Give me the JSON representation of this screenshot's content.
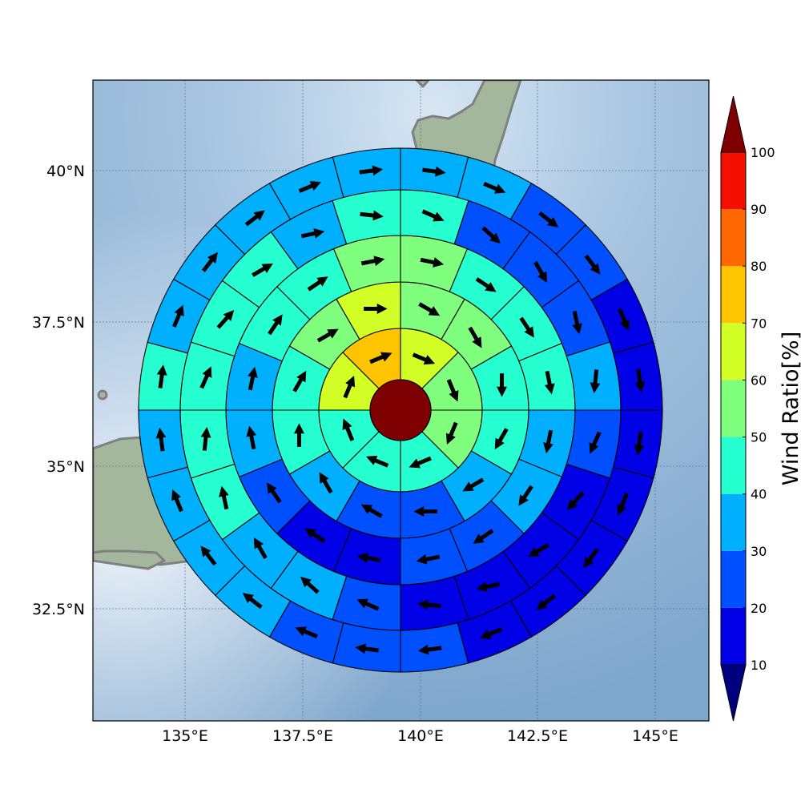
{
  "map": {
    "lon_ticks": [
      "135°E",
      "137.5°E",
      "140°E",
      "142.5°E",
      "145°E"
    ],
    "lat_ticks": [
      "40°N",
      "37.5°N",
      "35°N",
      "32.5°N"
    ],
    "land_color": "#9fb08f",
    "sea_color": "#8fb1d3",
    "coast_color": "#808080"
  },
  "wind_rose": {
    "center_color": "#7f0000",
    "rings": [
      {
        "sector_values": [
          66,
          55,
          55,
          40,
          40,
          45,
          62,
          75
        ]
      },
      {
        "sector_values": [
          55,
          55,
          48,
          45,
          35,
          25,
          25,
          35,
          45,
          48,
          55,
          60
        ]
      },
      {
        "sector_values": [
          55,
          45,
          45,
          45,
          35,
          35,
          25,
          25,
          15,
          15,
          25,
          35,
          35,
          45,
          45,
          55
        ]
      },
      {
        "sector_values": [
          45,
          25,
          25,
          25,
          35,
          25,
          15,
          15,
          15,
          15,
          25,
          35,
          35,
          45,
          45,
          45,
          45,
          45,
          35,
          45
        ]
      },
      {
        "sector_values": [
          35,
          35,
          25,
          25,
          15,
          15,
          15,
          15,
          15,
          15,
          15,
          25,
          25,
          25,
          35,
          35,
          35,
          35,
          45,
          35,
          35,
          35,
          35,
          35
        ]
      }
    ],
    "arrow_color": "#000000"
  },
  "colorbar": {
    "label": "Wind Ratio[%]",
    "ticks": [
      "10",
      "20",
      "30",
      "40",
      "50",
      "60",
      "70",
      "80",
      "90",
      "100"
    ],
    "under_color": "#00007f",
    "over_color": "#7f0000",
    "bins": [
      {
        "min": 10,
        "max": 20,
        "color": "#0000e6"
      },
      {
        "min": 20,
        "max": 30,
        "color": "#0050ff"
      },
      {
        "min": 30,
        "max": 40,
        "color": "#00b0ff"
      },
      {
        "min": 40,
        "max": 50,
        "color": "#26ffd0"
      },
      {
        "min": 50,
        "max": 60,
        "color": "#80ff7e"
      },
      {
        "min": 60,
        "max": 70,
        "color": "#d2ff26"
      },
      {
        "min": 70,
        "max": 80,
        "color": "#ffc400"
      },
      {
        "min": 80,
        "max": 90,
        "color": "#ff6800"
      },
      {
        "min": 90,
        "max": 100,
        "color": "#f50f00"
      }
    ]
  }
}
